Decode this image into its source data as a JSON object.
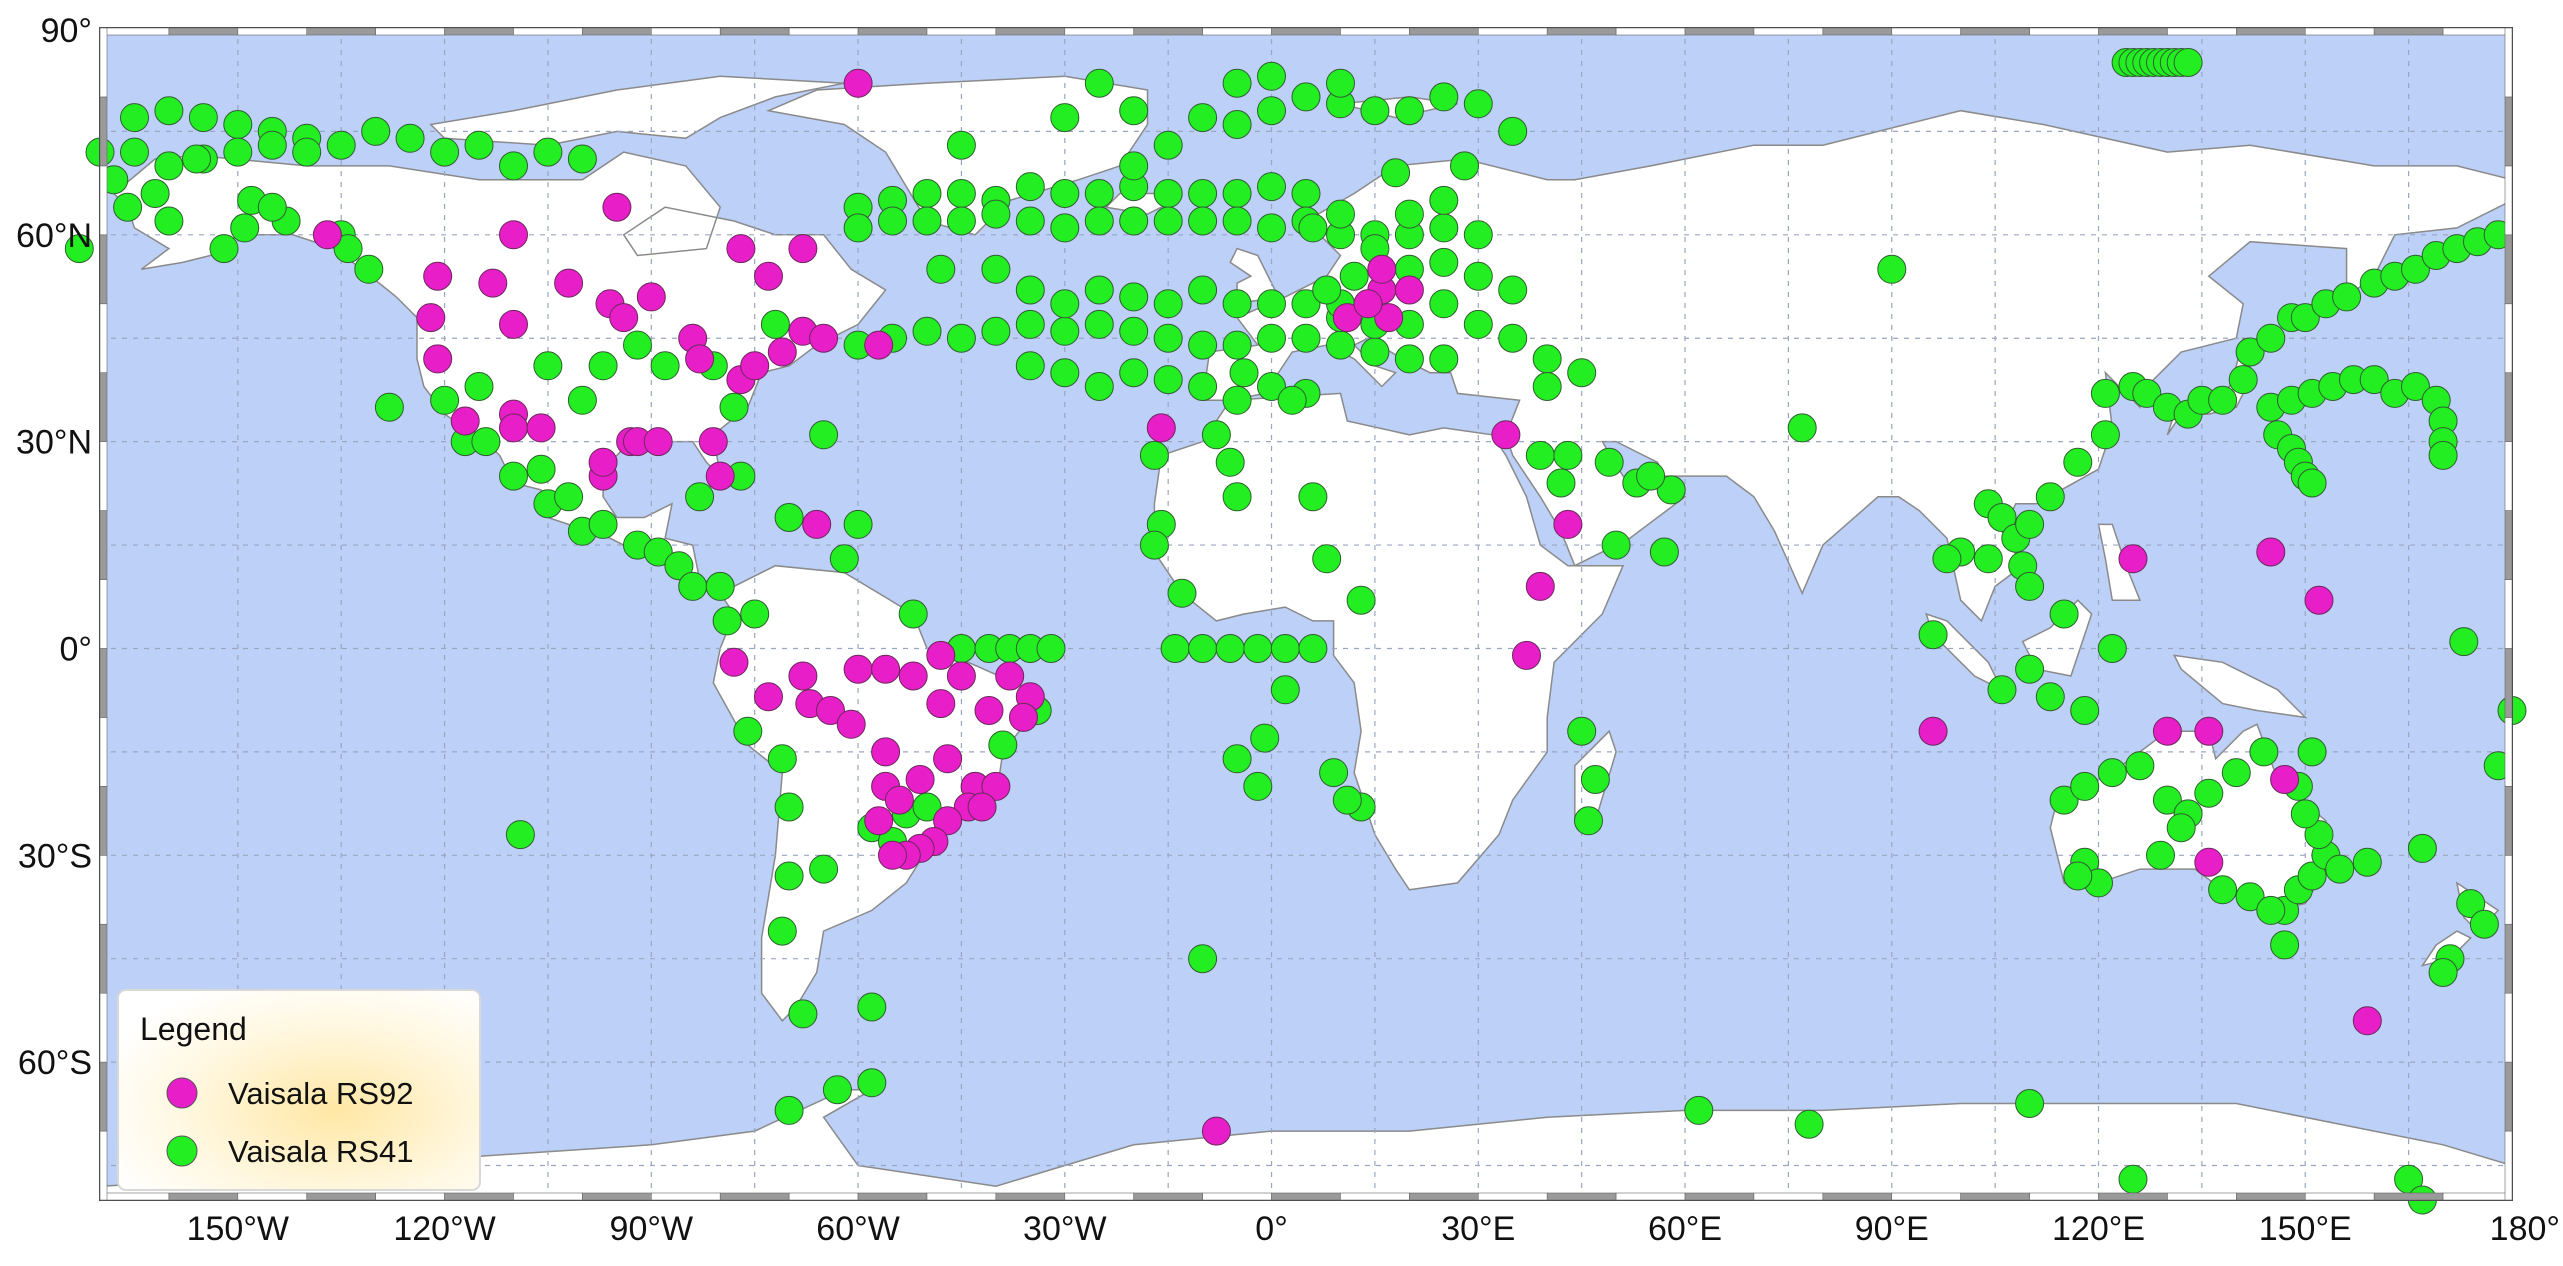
{
  "map": {
    "projection": "equirectangular",
    "lon_range": [
      -170,
      180
    ],
    "lat_range": [
      -80,
      90
    ],
    "graticule": "dashed",
    "ocean_color": "#bcd0f8",
    "land_color": "#ffffff",
    "border_color": "#8a8a8a",
    "lon_ticks": [
      {
        "lon": -150,
        "label": "150°W"
      },
      {
        "lon": -120,
        "label": "120°W"
      },
      {
        "lon": -90,
        "label": "90°W"
      },
      {
        "lon": -60,
        "label": "60°W"
      },
      {
        "lon": -30,
        "label": "30°W"
      },
      {
        "lon": 0,
        "label": "0°"
      },
      {
        "lon": 30,
        "label": "30°E"
      },
      {
        "lon": 60,
        "label": "60°E"
      },
      {
        "lon": 90,
        "label": "90°E"
      },
      {
        "lon": 120,
        "label": "120°E"
      },
      {
        "lon": 150,
        "label": "150°E"
      },
      {
        "lon": 180,
        "label": "180°"
      }
    ],
    "lat_ticks": [
      {
        "lat": 90,
        "label": "90°"
      },
      {
        "lat": 60,
        "label": "60°N"
      },
      {
        "lat": 30,
        "label": "30°N"
      },
      {
        "lat": 0,
        "label": "0°"
      },
      {
        "lat": -30,
        "label": "30°S"
      },
      {
        "lat": -60,
        "label": "60°S"
      }
    ]
  },
  "legend": {
    "title": "Legend",
    "placement": "bottom-left",
    "items": [
      {
        "label": "Vaisala RS92",
        "color": "#e81ec8"
      },
      {
        "label": "Vaisala RS41",
        "color": "#22ee22"
      }
    ]
  },
  "stations": {
    "rs92": [
      [
        -60,
        82
      ],
      [
        -137,
        60
      ],
      [
        -110,
        60
      ],
      [
        -95,
        64
      ],
      [
        -121,
        54
      ],
      [
        -113,
        53
      ],
      [
        -110,
        47
      ],
      [
        -122,
        48
      ],
      [
        -121,
        42
      ],
      [
        -102,
        53
      ],
      [
        -96,
        50
      ],
      [
        -94,
        48
      ],
      [
        -90,
        51
      ],
      [
        -77,
        58
      ],
      [
        -68,
        58
      ],
      [
        -73,
        54
      ],
      [
        -84,
        45
      ],
      [
        -83,
        42
      ],
      [
        -77,
        39
      ],
      [
        -75,
        41
      ],
      [
        -71,
        43
      ],
      [
        -68,
        46
      ],
      [
        -65,
        45
      ],
      [
        -57,
        44
      ],
      [
        -117,
        33
      ],
      [
        -110,
        34
      ],
      [
        -110,
        32
      ],
      [
        -106,
        32
      ],
      [
        -97,
        25
      ],
      [
        -97,
        27
      ],
      [
        -93,
        30
      ],
      [
        -92,
        30
      ],
      [
        -89,
        30
      ],
      [
        -81,
        30
      ],
      [
        -80,
        25
      ],
      [
        -66,
        18
      ],
      [
        -78,
        -2
      ],
      [
        -73,
        -7
      ],
      [
        -68,
        -4
      ],
      [
        -67,
        -8
      ],
      [
        -64,
        -9
      ],
      [
        -61,
        -11
      ],
      [
        -60,
        -3
      ],
      [
        -56,
        -3
      ],
      [
        -52,
        -4
      ],
      [
        -48,
        -1
      ],
      [
        -45,
        -4
      ],
      [
        -38,
        -4
      ],
      [
        -35,
        -7
      ],
      [
        -36,
        -10
      ],
      [
        -41,
        -9
      ],
      [
        -48,
        -8
      ],
      [
        -56,
        -15
      ],
      [
        -56,
        -20
      ],
      [
        -54,
        -22
      ],
      [
        -51,
        -19
      ],
      [
        -47,
        -16
      ],
      [
        -43,
        -20
      ],
      [
        -40,
        -20
      ],
      [
        -44,
        -23
      ],
      [
        -47,
        -25
      ],
      [
        -49,
        -28
      ],
      [
        -51,
        -29
      ],
      [
        -53,
        -30
      ],
      [
        -55,
        -30
      ],
      [
        -57,
        -25
      ],
      [
        -42,
        -23
      ],
      [
        -16,
        32
      ],
      [
        -8,
        -70
      ],
      [
        11,
        48
      ],
      [
        16,
        52
      ],
      [
        17,
        48
      ],
      [
        16,
        55
      ],
      [
        20,
        52
      ],
      [
        14,
        50
      ],
      [
        34,
        31
      ],
      [
        43,
        18
      ],
      [
        39,
        9
      ],
      [
        37,
        -1
      ],
      [
        96,
        -12
      ],
      [
        125,
        13
      ],
      [
        130,
        -12
      ],
      [
        136,
        -31
      ],
      [
        136,
        -12
      ],
      [
        145,
        14
      ],
      [
        147,
        -19
      ],
      [
        152,
        7
      ],
      [
        159,
        -54
      ]
    ],
    "rs41": [
      [
        -173,
        58
      ],
      [
        -165,
        77
      ],
      [
        -160,
        78
      ],
      [
        -155,
        77
      ],
      [
        -150,
        76
      ],
      [
        -145,
        75
      ],
      [
        -140,
        74
      ],
      [
        -135,
        73
      ],
      [
        -130,
        75
      ],
      [
        -125,
        74
      ],
      [
        -120,
        72
      ],
      [
        -115,
        73
      ],
      [
        -110,
        70
      ],
      [
        -105,
        72
      ],
      [
        -100,
        71
      ],
      [
        -170,
        72
      ],
      [
        -168,
        68
      ],
      [
        -165,
        72
      ],
      [
        -160,
        70
      ],
      [
        -155,
        71
      ],
      [
        -150,
        72
      ],
      [
        -145,
        73
      ],
      [
        -140,
        72
      ],
      [
        -162,
        66
      ],
      [
        -156,
        71
      ],
      [
        -148,
        65
      ],
      [
        -135,
        60
      ],
      [
        -134,
        58
      ],
      [
        -131,
        55
      ],
      [
        -143,
        62
      ],
      [
        -149,
        61
      ],
      [
        -152,
        58
      ],
      [
        -160,
        62
      ],
      [
        -166,
        64
      ],
      [
        -145,
        64
      ],
      [
        -128,
        35
      ],
      [
        -120,
        36
      ],
      [
        -115,
        38
      ],
      [
        -117,
        30
      ],
      [
        -110,
        25
      ],
      [
        -114,
        30
      ],
      [
        -105,
        21
      ],
      [
        -100,
        17
      ],
      [
        -102,
        22
      ],
      [
        -106,
        26
      ],
      [
        -97,
        18
      ],
      [
        -92,
        15
      ],
      [
        -89,
        14
      ],
      [
        -86,
        12
      ],
      [
        -84,
        9
      ],
      [
        -80,
        9
      ],
      [
        -79,
        4
      ],
      [
        -75,
        5
      ],
      [
        -76,
        -12
      ],
      [
        -71,
        -16
      ],
      [
        -70,
        -23
      ],
      [
        -70,
        -33
      ],
      [
        -71,
        -41
      ],
      [
        -68,
        -53
      ],
      [
        -58,
        -52
      ],
      [
        -65,
        -32
      ],
      [
        -58,
        -26
      ],
      [
        -55,
        -28
      ],
      [
        -53,
        -24
      ],
      [
        -50,
        -23
      ],
      [
        -45,
        0
      ],
      [
        -41,
        0
      ],
      [
        -38,
        0
      ],
      [
        -35,
        0
      ],
      [
        -32,
        0
      ],
      [
        -43,
        -20
      ],
      [
        -34,
        -9
      ],
      [
        -39,
        -14
      ],
      [
        -105,
        41
      ],
      [
        -100,
        36
      ],
      [
        -97,
        41
      ],
      [
        -92,
        44
      ],
      [
        -88,
        41
      ],
      [
        -81,
        41
      ],
      [
        -78,
        35
      ],
      [
        -72,
        47
      ],
      [
        -65,
        31
      ],
      [
        -83,
        22
      ],
      [
        -77,
        25
      ],
      [
        -70,
        19
      ],
      [
        -62,
        13
      ],
      [
        -52,
        5
      ],
      [
        -60,
        18
      ],
      [
        -109,
        -27
      ],
      [
        -58,
        -63
      ],
      [
        -63,
        -64
      ],
      [
        -70,
        -67
      ],
      [
        -10,
        -45
      ],
      [
        -60,
        44
      ],
      [
        -55,
        45
      ],
      [
        -50,
        46
      ],
      [
        -45,
        45
      ],
      [
        -40,
        46
      ],
      [
        -35,
        47
      ],
      [
        -30,
        46
      ],
      [
        -25,
        47
      ],
      [
        -20,
        46
      ],
      [
        -15,
        45
      ],
      [
        -10,
        44
      ],
      [
        -5,
        44
      ],
      [
        0,
        45
      ],
      [
        5,
        45
      ],
      [
        10,
        44
      ],
      [
        15,
        43
      ],
      [
        20,
        42
      ],
      [
        25,
        42
      ],
      [
        -48,
        55
      ],
      [
        -40,
        55
      ],
      [
        -35,
        52
      ],
      [
        -30,
        50
      ],
      [
        -25,
        52
      ],
      [
        -20,
        51
      ],
      [
        -15,
        50
      ],
      [
        -10,
        52
      ],
      [
        -5,
        50
      ],
      [
        0,
        50
      ],
      [
        5,
        50
      ],
      [
        10,
        48
      ],
      [
        15,
        47
      ],
      [
        20,
        47
      ],
      [
        -60,
        64
      ],
      [
        -55,
        65
      ],
      [
        -50,
        66
      ],
      [
        -45,
        66
      ],
      [
        -40,
        65
      ],
      [
        -35,
        67
      ],
      [
        -30,
        66
      ],
      [
        -25,
        66
      ],
      [
        -20,
        67
      ],
      [
        -15,
        66
      ],
      [
        -10,
        66
      ],
      [
        -5,
        66
      ],
      [
        0,
        67
      ],
      [
        5,
        66
      ],
      [
        -60,
        61
      ],
      [
        -55,
        62
      ],
      [
        -50,
        62
      ],
      [
        -45,
        62
      ],
      [
        -40,
        63
      ],
      [
        -35,
        62
      ],
      [
        -30,
        61
      ],
      [
        -25,
        62
      ],
      [
        -20,
        62
      ],
      [
        -15,
        62
      ],
      [
        -10,
        62
      ],
      [
        -5,
        62
      ],
      [
        0,
        61
      ],
      [
        5,
        62
      ],
      [
        10,
        60
      ],
      [
        15,
        60
      ],
      [
        20,
        60
      ],
      [
        25,
        61
      ],
      [
        30,
        60
      ],
      [
        -45,
        73
      ],
      [
        -20,
        70
      ],
      [
        -15,
        73
      ],
      [
        -10,
        77
      ],
      [
        -5,
        76
      ],
      [
        0,
        78
      ],
      [
        5,
        80
      ],
      [
        10,
        79
      ],
      [
        15,
        78
      ],
      [
        20,
        78
      ],
      [
        25,
        80
      ],
      [
        30,
        79
      ],
      [
        35,
        75
      ],
      [
        -25,
        82
      ],
      [
        -20,
        78
      ],
      [
        -30,
        77
      ],
      [
        -5,
        82
      ],
      [
        0,
        83
      ],
      [
        10,
        82
      ],
      [
        -20,
        40
      ],
      [
        -15,
        39
      ],
      [
        -10,
        38
      ],
      [
        -5,
        36
      ],
      [
        0,
        38
      ],
      [
        5,
        37
      ],
      [
        -25,
        38
      ],
      [
        -30,
        40
      ],
      [
        -35,
        41
      ],
      [
        20,
        55
      ],
      [
        25,
        56
      ],
      [
        30,
        54
      ],
      [
        35,
        52
      ],
      [
        25,
        50
      ],
      [
        30,
        47
      ],
      [
        35,
        45
      ],
      [
        40,
        42
      ],
      [
        45,
        40
      ],
      [
        40,
        38
      ],
      [
        10,
        50
      ],
      [
        12,
        54
      ],
      [
        8,
        52
      ],
      [
        15,
        58
      ],
      [
        20,
        63
      ],
      [
        25,
        65
      ],
      [
        28,
        70
      ],
      [
        18,
        69
      ],
      [
        10,
        63
      ],
      [
        6,
        61
      ],
      [
        -4,
        40
      ],
      [
        -8,
        31
      ],
      [
        -6,
        27
      ],
      [
        -17,
        28
      ],
      [
        -16,
        18
      ],
      [
        -17,
        15
      ],
      [
        -13,
        8
      ],
      [
        -5,
        22
      ],
      [
        3,
        36
      ],
      [
        6,
        22
      ],
      [
        8,
        13
      ],
      [
        13,
        7
      ],
      [
        2,
        -6
      ],
      [
        -5,
        -16
      ],
      [
        -2,
        -20
      ],
      [
        13,
        -23
      ],
      [
        11,
        -22
      ],
      [
        9,
        -18
      ],
      [
        -14,
        0
      ],
      [
        -10,
        0
      ],
      [
        -6,
        0
      ],
      [
        -2,
        0
      ],
      [
        2,
        0
      ],
      [
        6,
        0
      ],
      [
        -1,
        -13
      ],
      [
        45,
        -12
      ],
      [
        47,
        -19
      ],
      [
        46,
        -25
      ],
      [
        39,
        28
      ],
      [
        42,
        24
      ],
      [
        43,
        28
      ],
      [
        49,
        27
      ],
      [
        53,
        24
      ],
      [
        58,
        23
      ],
      [
        55,
        25
      ],
      [
        50,
        15
      ],
      [
        57,
        14
      ],
      [
        77,
        32
      ],
      [
        90,
        55
      ],
      [
        104,
        21
      ],
      [
        106,
        19
      ],
      [
        108,
        16
      ],
      [
        110,
        18
      ],
      [
        104,
        13
      ],
      [
        100,
        14
      ],
      [
        109,
        12
      ],
      [
        113,
        22
      ],
      [
        117,
        27
      ],
      [
        121,
        31
      ],
      [
        121,
        37
      ],
      [
        125,
        38
      ],
      [
        127,
        37
      ],
      [
        130,
        35
      ],
      [
        133,
        34
      ],
      [
        135,
        36
      ],
      [
        138,
        36
      ],
      [
        141,
        39
      ],
      [
        142,
        43
      ],
      [
        145,
        45
      ],
      [
        148,
        48
      ],
      [
        150,
        48
      ],
      [
        153,
        50
      ],
      [
        156,
        51
      ],
      [
        160,
        53
      ],
      [
        163,
        54
      ],
      [
        166,
        55
      ],
      [
        169,
        57
      ],
      [
        172,
        58
      ],
      [
        175,
        59
      ],
      [
        178,
        60
      ],
      [
        145,
        35
      ],
      [
        148,
        36
      ],
      [
        151,
        37
      ],
      [
        154,
        38
      ],
      [
        157,
        39
      ],
      [
        160,
        39
      ],
      [
        163,
        37
      ],
      [
        166,
        38
      ],
      [
        169,
        36
      ],
      [
        170,
        33
      ],
      [
        170,
        30
      ],
      [
        170,
        28
      ],
      [
        146,
        31
      ],
      [
        148,
        29
      ],
      [
        149,
        27
      ],
      [
        150,
        25
      ],
      [
        151,
        24
      ],
      [
        115,
        -22
      ],
      [
        118,
        -20
      ],
      [
        122,
        -18
      ],
      [
        126,
        -17
      ],
      [
        130,
        -22
      ],
      [
        133,
        -24
      ],
      [
        136,
        -21
      ],
      [
        140,
        -18
      ],
      [
        144,
        -15
      ],
      [
        118,
        -31
      ],
      [
        120,
        -34
      ],
      [
        117,
        -33
      ],
      [
        129,
        -30
      ],
      [
        132,
        -26
      ],
      [
        138,
        -35
      ],
      [
        142,
        -36
      ],
      [
        147,
        -38
      ],
      [
        149,
        -35
      ],
      [
        151,
        -33
      ],
      [
        153,
        -30
      ],
      [
        152,
        -27
      ],
      [
        150,
        -24
      ],
      [
        149,
        -20
      ],
      [
        147,
        -43
      ],
      [
        145,
        -38
      ],
      [
        155,
        -32
      ],
      [
        151,
        -15
      ],
      [
        174,
        -37
      ],
      [
        176,
        -40
      ],
      [
        171,
        -45
      ],
      [
        170,
        -47
      ],
      [
        167,
        -29
      ],
      [
        178,
        -17
      ],
      [
        180,
        -9
      ],
      [
        173,
        1
      ],
      [
        159,
        -31
      ],
      [
        122,
        0
      ],
      [
        115,
        5
      ],
      [
        110,
        9
      ],
      [
        113,
        -7
      ],
      [
        110,
        -3
      ],
      [
        106,
        -6
      ],
      [
        118,
        -9
      ],
      [
        96,
        2
      ],
      [
        98,
        13
      ],
      [
        124,
        85
      ],
      [
        125,
        85
      ],
      [
        126,
        85
      ],
      [
        127,
        85
      ],
      [
        128,
        85
      ],
      [
        129,
        85
      ],
      [
        130,
        85
      ],
      [
        131,
        85
      ],
      [
        132,
        85
      ],
      [
        133,
        85
      ],
      [
        62,
        -67
      ],
      [
        78,
        -69
      ],
      [
        110,
        -66
      ],
      [
        125,
        -77
      ],
      [
        165,
        -77
      ],
      [
        167,
        -80
      ]
    ]
  }
}
